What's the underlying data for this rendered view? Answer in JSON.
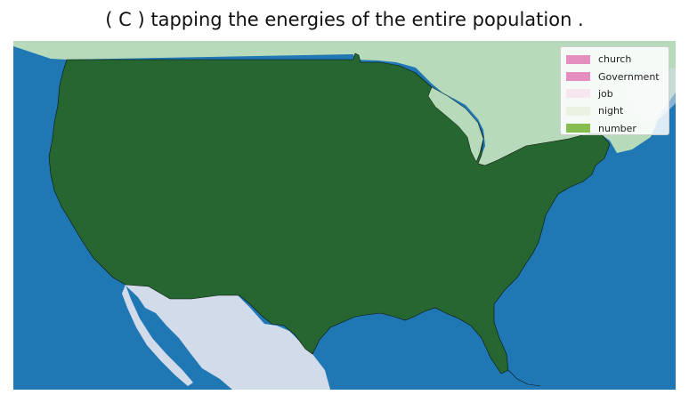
{
  "title": "( C ) tapping the energies of the entire population .",
  "colors": {
    "ocean": "#1f77b4",
    "usa": "#256631",
    "canada": "#b7dbba",
    "mexico": "#d2dbe9",
    "border": "#111111"
  },
  "legend": {
    "items": [
      {
        "label": "church",
        "color": "#e58fc1"
      },
      {
        "label": "Government",
        "color": "#e58fc1"
      },
      {
        "label": "job",
        "color": "#f6e6f0"
      },
      {
        "label": "night",
        "color": "#eaf3e1"
      },
      {
        "label": "number",
        "color": "#86bd4e"
      }
    ]
  }
}
